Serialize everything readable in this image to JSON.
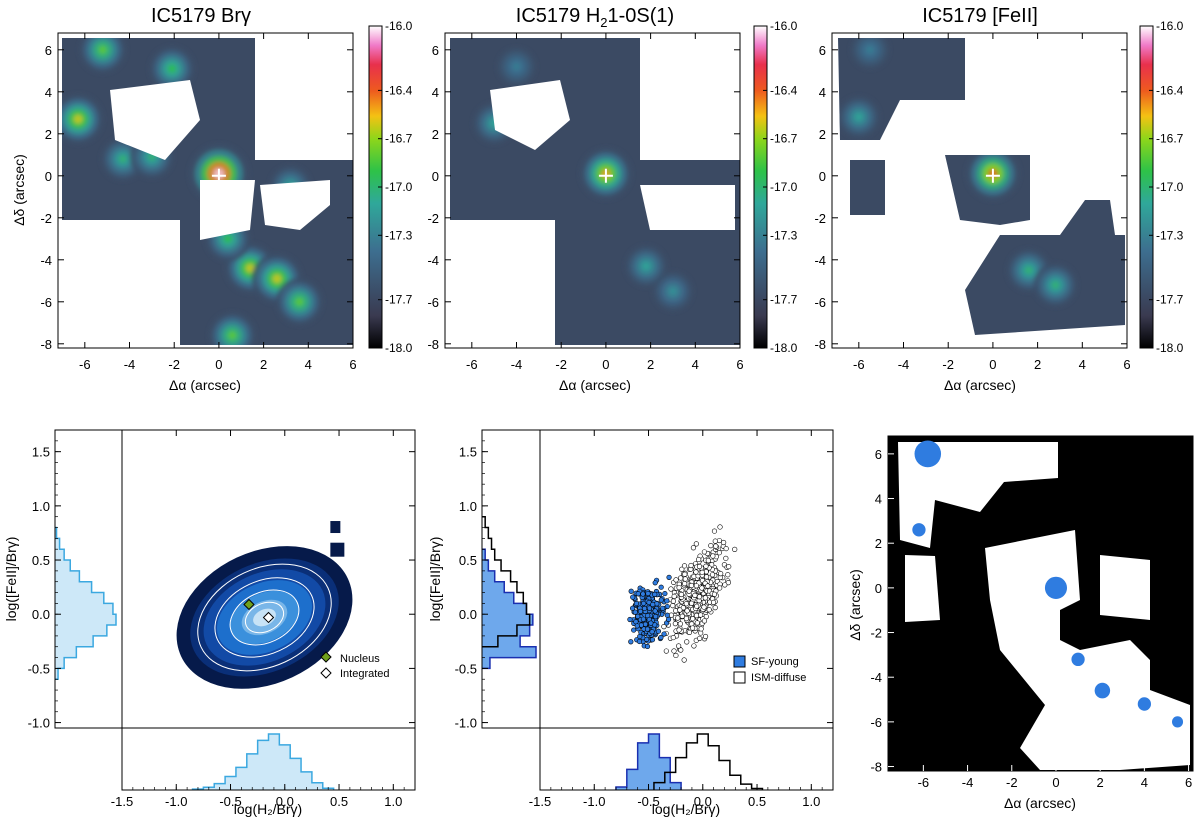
{
  "chart_data": [
    {
      "type": "heatmap",
      "title": "IC5179 Brγ",
      "xlabel": "Δα (arcsec)",
      "ylabel": "Δδ (arcsec)",
      "xlim": [
        -7.2,
        6.0
      ],
      "ylim": [
        -8.2,
        6.8
      ],
      "xticks": [
        "-6",
        "-4",
        "-2",
        "0",
        "2",
        "4",
        "6"
      ],
      "yticks": [
        "6",
        "4",
        "2",
        "0",
        "-2",
        "-4",
        "-6",
        "-8"
      ],
      "colorbar": {
        "range": [
          -18.0,
          -16.0
        ],
        "ticks": [
          "-16.0",
          "-16.4",
          "-16.7",
          "-17.0",
          "-17.3",
          "-17.7",
          "-18.0"
        ]
      },
      "nucleus_marker": [
        0,
        0
      ],
      "blobs": [
        {
          "x": 0.0,
          "y": 0.1,
          "value": -16.05
        },
        {
          "x": -6.3,
          "y": 2.7,
          "value": -16.6
        },
        {
          "x": -5.2,
          "y": 6.0,
          "value": -16.8
        },
        {
          "x": -2.1,
          "y": 5.1,
          "value": -16.9
        },
        {
          "x": -4.3,
          "y": 0.8,
          "value": -17.0
        },
        {
          "x": -3.0,
          "y": 0.9,
          "value": -17.0
        },
        {
          "x": 1.4,
          "y": -4.4,
          "value": -16.6
        },
        {
          "x": 2.6,
          "y": -4.9,
          "value": -16.6
        },
        {
          "x": 3.6,
          "y": -6.0,
          "value": -16.8
        },
        {
          "x": 0.4,
          "y": -3.0,
          "value": -16.9
        },
        {
          "x": 0.6,
          "y": -7.6,
          "value": -16.8
        },
        {
          "x": 3.2,
          "y": -0.5,
          "value": -17.1
        }
      ]
    },
    {
      "type": "heatmap",
      "title_main": "IC5179 H",
      "title_sub": "2",
      "title_rest": "1-0S(1)",
      "xlabel": "Δα (arcsec)",
      "xlim": [
        -7.2,
        6.0
      ],
      "ylim": [
        -8.2,
        6.8
      ],
      "xticks": [
        "-6",
        "-4",
        "-2",
        "0",
        "2",
        "4",
        "6"
      ],
      "yticks": [
        "6",
        "4",
        "2",
        "0",
        "-2",
        "-4",
        "-6",
        "-8"
      ],
      "colorbar": {
        "range": [
          -18.0,
          -16.0
        ],
        "ticks": [
          "-16.0",
          "-16.4",
          "-16.7",
          "-17.0",
          "-17.3",
          "-17.7",
          "-18.0"
        ]
      },
      "nucleus_marker": [
        0,
        0
      ],
      "blobs": [
        {
          "x": 0.0,
          "y": 0.1,
          "value": -16.5
        },
        {
          "x": -5.0,
          "y": 2.5,
          "value": -17.1
        },
        {
          "x": 1.8,
          "y": -4.3,
          "value": -17.1
        },
        {
          "x": 3.0,
          "y": -5.5,
          "value": -17.2
        },
        {
          "x": -4.0,
          "y": 5.2,
          "value": -17.3
        }
      ]
    },
    {
      "type": "heatmap",
      "title": "IC5179 [FeII]",
      "xlabel": "Δα (arcsec)",
      "xlim": [
        -7.2,
        6.0
      ],
      "ylim": [
        -8.2,
        6.8
      ],
      "xticks": [
        "-6",
        "-4",
        "-2",
        "0",
        "2",
        "4",
        "6"
      ],
      "yticks": [
        "6",
        "4",
        "2",
        "0",
        "-2",
        "-4",
        "-6",
        "-8"
      ],
      "colorbar": {
        "range": [
          -18.0,
          -16.0
        ],
        "ticks": [
          "-16.0",
          "-16.4",
          "-16.7",
          "-17.0",
          "-17.3",
          "-17.7",
          "-18.0"
        ]
      },
      "nucleus_marker": [
        0,
        0
      ],
      "blobs": [
        {
          "x": 0.0,
          "y": 0.1,
          "value": -16.4
        },
        {
          "x": -6.0,
          "y": 2.8,
          "value": -17.1
        },
        {
          "x": -5.5,
          "y": 6.0,
          "value": -17.3
        },
        {
          "x": 1.6,
          "y": -4.5,
          "value": -17.0
        },
        {
          "x": 2.8,
          "y": -5.2,
          "value": -17.0
        }
      ]
    },
    {
      "type": "heatmap",
      "xlabel": "log(H₂/Brγ)",
      "ylabel": "log([FeII]/Brγ)",
      "xlim": [
        -1.5,
        1.2
      ],
      "ylim": [
        -1.05,
        1.7
      ],
      "xticks": [
        "-1.5",
        "-1.0",
        "-0.5",
        "0.0",
        "0.5",
        "1.0"
      ],
      "yticks": [
        "1.5",
        "1.0",
        "0.5",
        "0.0",
        "-0.5",
        "-1.0"
      ],
      "points": [
        {
          "name": "Nucleus",
          "x": -0.33,
          "y": 0.09
        },
        {
          "name": "Integrated",
          "x": -0.15,
          "y": -0.03
        }
      ],
      "legend": [
        "Nucleus",
        "Integrated"
      ],
      "x_hist": {
        "centers": [
          -0.8,
          -0.7,
          -0.6,
          -0.5,
          -0.4,
          -0.3,
          -0.2,
          -0.1,
          0.0,
          0.1,
          0.2,
          0.3,
          0.4
        ],
        "counts": [
          1,
          3,
          7,
          15,
          25,
          40,
          55,
          62,
          50,
          35,
          20,
          8,
          2
        ]
      },
      "y_hist": {
        "centers": [
          0.75,
          0.65,
          0.55,
          0.45,
          0.35,
          0.25,
          0.15,
          0.05,
          -0.05,
          -0.15,
          -0.25,
          -0.35,
          -0.45,
          -0.55
        ],
        "counts": [
          1,
          3,
          6,
          10,
          16,
          24,
          32,
          38,
          40,
          34,
          25,
          14,
          6,
          2
        ]
      }
    },
    {
      "type": "scatter",
      "xlabel": "log(H₂/Brγ)",
      "ylabel": "log([FeII]/Brγ)",
      "xlim": [
        -1.5,
        1.2
      ],
      "ylim": [
        -1.05,
        1.7
      ],
      "xticks": [
        "-1.5",
        "-1.0",
        "-0.5",
        "0.0",
        "0.5",
        "1.0"
      ],
      "yticks": [
        "1.5",
        "1.0",
        "0.5",
        "0.0",
        "-0.5",
        "-1.0"
      ],
      "series": [
        {
          "name": "SF-young",
          "center": [
            -0.5,
            0.0
          ],
          "spread": [
            0.1,
            0.18
          ],
          "color": "#2f7ce0"
        },
        {
          "name": "ISM-diffuse",
          "center": [
            -0.05,
            0.2
          ],
          "spread": [
            0.17,
            0.25
          ],
          "color": "#ffffff"
        }
      ],
      "legend": [
        "SF-young",
        "ISM-diffuse"
      ],
      "x_hist": [
        {
          "name": "SF-young",
          "centers": [
            -0.75,
            -0.65,
            -0.55,
            -0.45,
            -0.35,
            -0.25
          ],
          "counts": [
            2,
            14,
            32,
            38,
            22,
            5
          ]
        },
        {
          "name": "ISM-diffuse",
          "centers": [
            -0.4,
            -0.3,
            -0.2,
            -0.1,
            0.0,
            0.1,
            0.2,
            0.3,
            0.4,
            0.5
          ],
          "counts": [
            5,
            12,
            22,
            32,
            38,
            30,
            20,
            10,
            4,
            1
          ]
        }
      ],
      "y_hist": [
        {
          "name": "SF-young",
          "centers": [
            0.55,
            0.45,
            0.35,
            0.25,
            0.15,
            0.05,
            -0.05,
            -0.15,
            -0.25,
            -0.35,
            -0.45
          ],
          "counts": [
            2,
            4,
            8,
            14,
            20,
            28,
            32,
            30,
            24,
            34,
            5
          ]
        },
        {
          "name": "ISM-diffuse",
          "centers": [
            0.85,
            0.75,
            0.65,
            0.55,
            0.45,
            0.35,
            0.25,
            0.15,
            0.05,
            -0.05,
            -0.15,
            -0.25
          ],
          "counts": [
            2,
            4,
            6,
            8,
            12,
            18,
            22,
            26,
            28,
            30,
            22,
            10
          ]
        }
      ]
    },
    {
      "type": "heatmap",
      "xlabel": "Δα (arcsec)",
      "ylabel": "Δδ (arcsec)",
      "xlim": [
        -7.6,
        6.2
      ],
      "ylim": [
        -8.2,
        6.8
      ],
      "xticks": [
        "-6",
        "-4",
        "-2",
        "0",
        "2",
        "4",
        "6"
      ],
      "yticks": [
        "6",
        "4",
        "2",
        "0",
        "-2",
        "-4",
        "-6",
        "-8"
      ],
      "sf_regions": [
        {
          "x": -5.8,
          "y": 6.0,
          "r": 0.6
        },
        {
          "x": -6.2,
          "y": 2.6,
          "r": 0.3
        },
        {
          "x": 0.0,
          "y": 0.0,
          "r": 0.5
        },
        {
          "x": 1.0,
          "y": -3.2,
          "r": 0.3
        },
        {
          "x": 2.1,
          "y": -4.6,
          "r": 0.35
        },
        {
          "x": 4.0,
          "y": -5.2,
          "r": 0.3
        },
        {
          "x": 5.5,
          "y": -6.0,
          "r": 0.25
        }
      ],
      "colors": {
        "sf": "#2f7ce0",
        "diffuse": "#ffffff",
        "empty": "#000000"
      }
    }
  ]
}
